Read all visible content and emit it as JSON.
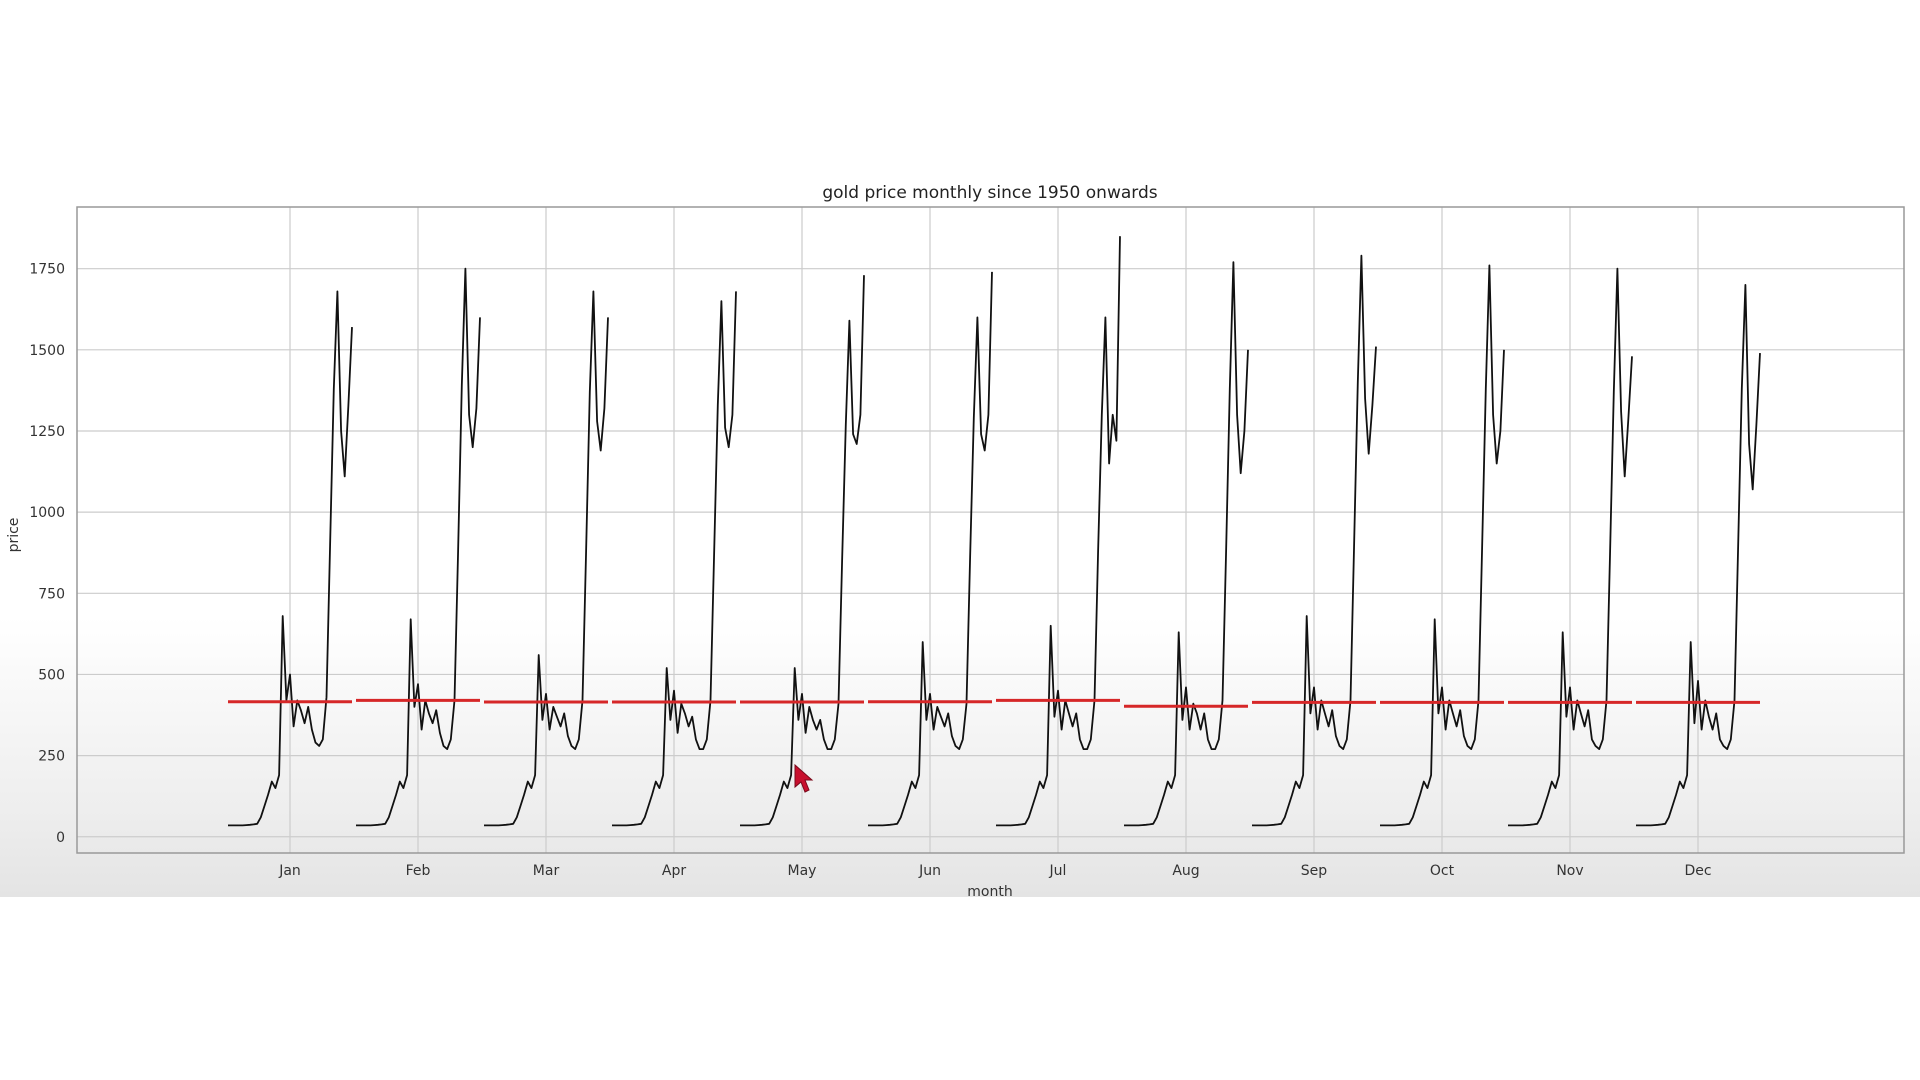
{
  "chart_data": {
    "type": "line",
    "title": "gold price monthly since 1950 onwards",
    "xlabel": "month",
    "ylabel": "price",
    "ylim": [
      -50,
      1940
    ],
    "yticks": [
      0,
      250,
      500,
      750,
      1000,
      1250,
      1500,
      1750
    ],
    "categories": [
      "Jan",
      "Feb",
      "Mar",
      "Apr",
      "May",
      "Jun",
      "Jul",
      "Aug",
      "Sep",
      "Oct",
      "Nov",
      "Dec"
    ],
    "grid": true,
    "legend": "none",
    "colors": {
      "series_line": "#111111",
      "mean_line": "#d62728",
      "grid": "#cccccc",
      "cursor": "#c8102e"
    },
    "series": [
      {
        "type": "line",
        "values_per_category": [
          [
            35,
            35,
            35,
            35,
            35,
            36,
            37,
            38,
            40,
            60,
            95,
            130,
            170,
            150,
            190,
            680,
            420,
            500,
            340,
            420,
            390,
            350,
            400,
            330,
            290,
            280,
            300,
            430,
            900,
            1380,
            1680,
            1250,
            1110,
            1330,
            1570
          ],
          [
            35,
            35,
            35,
            35,
            35,
            36,
            37,
            38,
            40,
            60,
            95,
            130,
            170,
            150,
            190,
            670,
            400,
            470,
            330,
            420,
            380,
            350,
            390,
            320,
            280,
            270,
            300,
            420,
            880,
            1390,
            1750,
            1300,
            1200,
            1320,
            1600
          ],
          [
            35,
            35,
            35,
            35,
            35,
            36,
            37,
            38,
            40,
            60,
            95,
            130,
            170,
            150,
            190,
            560,
            360,
            440,
            330,
            400,
            370,
            340,
            380,
            310,
            280,
            270,
            300,
            420,
            880,
            1370,
            1680,
            1280,
            1190,
            1320,
            1600
          ],
          [
            35,
            35,
            35,
            35,
            35,
            36,
            37,
            38,
            40,
            60,
            95,
            130,
            170,
            150,
            190,
            520,
            360,
            450,
            320,
            410,
            380,
            340,
            370,
            300,
            270,
            270,
            300,
            420,
            870,
            1330,
            1650,
            1260,
            1200,
            1300,
            1680
          ],
          [
            35,
            35,
            35,
            35,
            35,
            36,
            37,
            38,
            40,
            60,
            95,
            130,
            170,
            150,
            190,
            520,
            360,
            440,
            320,
            400,
            360,
            330,
            360,
            300,
            270,
            270,
            300,
            410,
            850,
            1270,
            1590,
            1240,
            1210,
            1300,
            1730
          ],
          [
            35,
            35,
            35,
            35,
            35,
            36,
            37,
            38,
            40,
            60,
            95,
            130,
            170,
            150,
            190,
            600,
            360,
            440,
            330,
            400,
            370,
            340,
            380,
            310,
            280,
            270,
            300,
            410,
            860,
            1290,
            1600,
            1240,
            1190,
            1300,
            1740
          ],
          [
            35,
            35,
            35,
            35,
            35,
            36,
            37,
            38,
            40,
            60,
            95,
            130,
            170,
            150,
            190,
            650,
            370,
            450,
            330,
            420,
            380,
            340,
            380,
            300,
            270,
            270,
            300,
            420,
            880,
            1300,
            1600,
            1150,
            1300,
            1220,
            1850
          ],
          [
            35,
            35,
            35,
            35,
            35,
            36,
            37,
            38,
            40,
            60,
            95,
            130,
            170,
            150,
            190,
            630,
            360,
            460,
            330,
            410,
            380,
            330,
            380,
            300,
            270,
            270,
            300,
            420,
            880,
            1380,
            1770,
            1300,
            1120,
            1250,
            1500
          ],
          [
            35,
            35,
            35,
            35,
            35,
            36,
            37,
            38,
            40,
            60,
            95,
            130,
            170,
            150,
            190,
            680,
            380,
            460,
            330,
            420,
            380,
            340,
            390,
            310,
            280,
            270,
            300,
            420,
            900,
            1400,
            1790,
            1350,
            1180,
            1330,
            1510
          ],
          [
            35,
            35,
            35,
            35,
            35,
            36,
            37,
            38,
            40,
            60,
            95,
            130,
            170,
            150,
            190,
            670,
            380,
            460,
            330,
            420,
            380,
            340,
            390,
            310,
            280,
            270,
            300,
            420,
            890,
            1380,
            1760,
            1300,
            1150,
            1250,
            1500
          ],
          [
            35,
            35,
            35,
            35,
            35,
            36,
            37,
            38,
            40,
            60,
            95,
            130,
            170,
            150,
            190,
            630,
            370,
            460,
            330,
            420,
            380,
            340,
            390,
            300,
            280,
            270,
            300,
            420,
            880,
            1370,
            1750,
            1310,
            1110,
            1290,
            1480
          ],
          [
            35,
            35,
            35,
            35,
            35,
            36,
            37,
            38,
            40,
            60,
            95,
            130,
            170,
            150,
            190,
            600,
            350,
            480,
            330,
            420,
            370,
            330,
            380,
            300,
            280,
            270,
            300,
            420,
            890,
            1380,
            1700,
            1210,
            1070,
            1270,
            1490
          ]
        ]
      },
      {
        "type": "mean",
        "values": [
          416,
          420,
          415,
          415,
          415,
          416,
          420,
          402,
          414,
          414,
          414,
          414
        ]
      }
    ],
    "annotations": []
  }
}
